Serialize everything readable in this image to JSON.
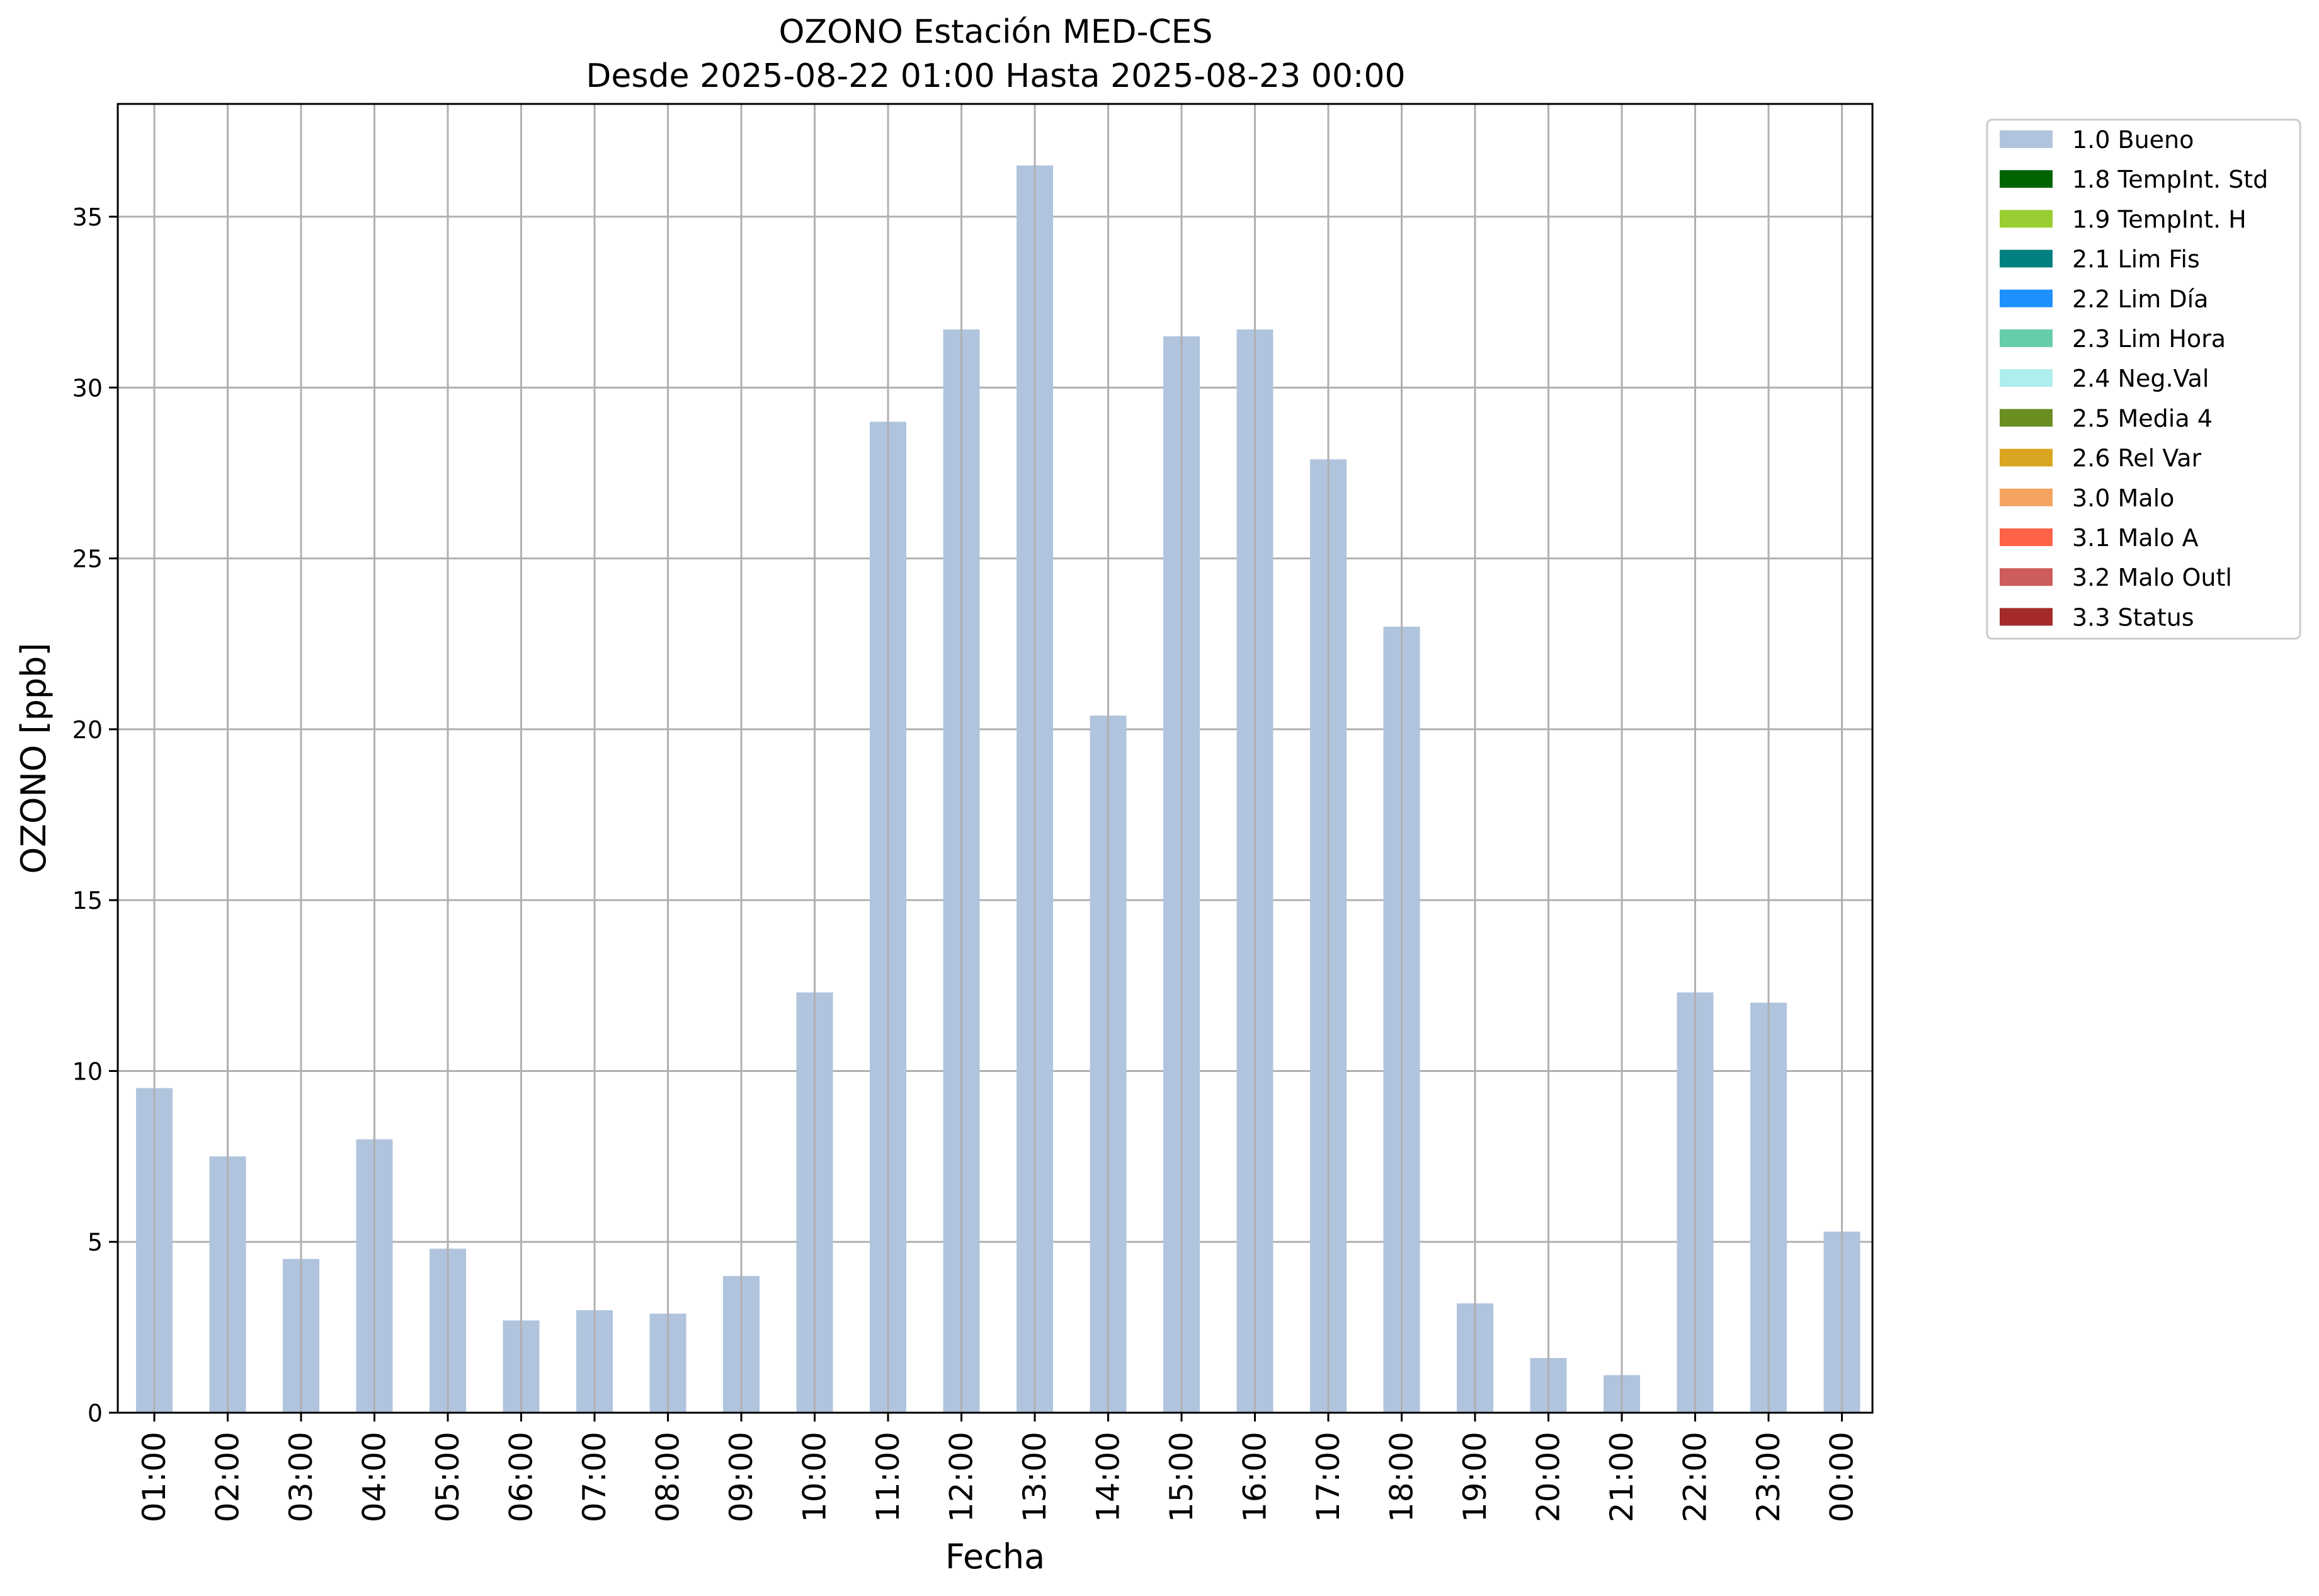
{
  "chart_data": {
    "type": "bar",
    "title": "OZONO Estación MED-CES",
    "subtitle": "Desde 2025-08-22 01:00 Hasta 2025-08-23 00:00",
    "xlabel": "Fecha",
    "ylabel": "OZONO [ppb]",
    "ylim": [
      0,
      38.3
    ],
    "yticks": [
      0,
      5,
      10,
      15,
      20,
      25,
      30,
      35
    ],
    "grid": true,
    "legend_position": "outside-top-right",
    "categories": [
      "01:00",
      "02:00",
      "03:00",
      "04:00",
      "05:00",
      "06:00",
      "07:00",
      "08:00",
      "09:00",
      "10:00",
      "11:00",
      "12:00",
      "13:00",
      "14:00",
      "15:00",
      "16:00",
      "17:00",
      "18:00",
      "19:00",
      "20:00",
      "21:00",
      "22:00",
      "23:00",
      "00:00"
    ],
    "series": [
      {
        "name": "1.0 Bueno",
        "color": "#b0c4de",
        "values": [
          9.5,
          7.5,
          4.5,
          8.0,
          4.8,
          2.7,
          3.0,
          2.9,
          4.0,
          12.3,
          29.0,
          31.7,
          36.5,
          20.4,
          31.5,
          31.7,
          27.9,
          23.0,
          3.2,
          1.6,
          1.1,
          12.3,
          12.0,
          5.3
        ]
      }
    ],
    "legend": [
      {
        "label": "1.0 Bueno",
        "color": "#b0c4de"
      },
      {
        "label": "1.8 TempInt. Std",
        "color": "#006400"
      },
      {
        "label": "1.9 TempInt. H",
        "color": "#9acd32"
      },
      {
        "label": "2.1 Lim Fis",
        "color": "#008080"
      },
      {
        "label": "2.2 Lim Día",
        "color": "#1e90ff"
      },
      {
        "label": "2.3 Lim Hora",
        "color": "#66cdaa"
      },
      {
        "label": "2.4 Neg.Val",
        "color": "#afeeee"
      },
      {
        "label": "2.5 Media 4",
        "color": "#6b8e23"
      },
      {
        "label": "2.6 Rel Var",
        "color": "#daa520"
      },
      {
        "label": "3.0 Malo",
        "color": "#f4a460"
      },
      {
        "label": "3.1 Malo A",
        "color": "#ff6347"
      },
      {
        "label": "3.2 Malo Outl",
        "color": "#cd5c5c"
      },
      {
        "label": "3.3 Status",
        "color": "#a52a2a"
      }
    ]
  }
}
